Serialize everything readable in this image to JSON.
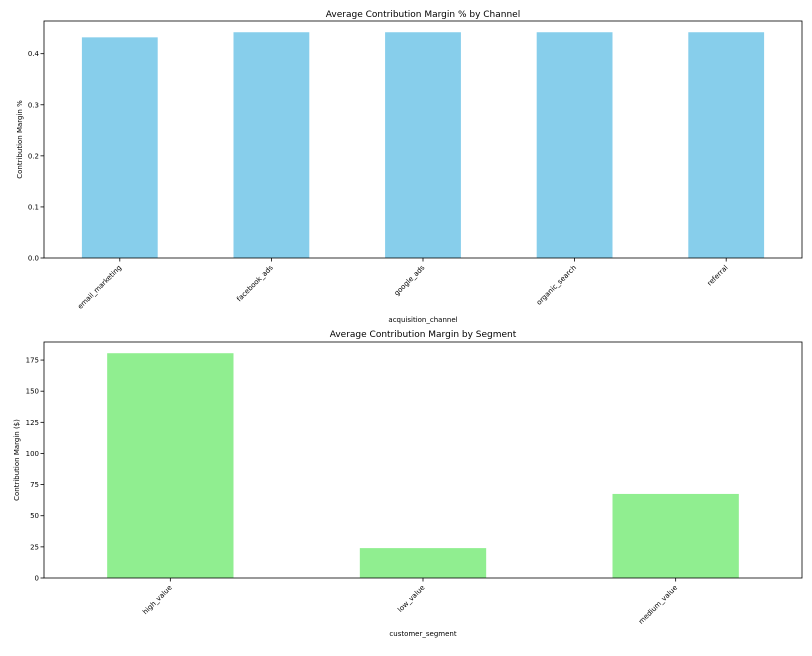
{
  "chart_data": [
    {
      "type": "bar",
      "title": "Average Contribution Margin % by Channel",
      "xlabel": "acquisition_channel",
      "ylabel": "Contribution Margin %",
      "categories": [
        "email_marketing",
        "facebook_ads",
        "google_ads",
        "organic_search",
        "referral"
      ],
      "values": [
        0.432,
        0.442,
        0.442,
        0.442,
        0.442
      ],
      "ylim": [
        0,
        0.464
      ],
      "yticks": [
        0.0,
        0.1,
        0.2,
        0.3,
        0.4
      ],
      "ytick_labels": [
        "0.0",
        "0.1",
        "0.2",
        "0.3",
        "0.4"
      ],
      "bar_color": "#87CEEB",
      "grid": false,
      "legend": "none"
    },
    {
      "type": "bar",
      "title": "Average Contribution Margin by Segment",
      "xlabel": "customer_segment",
      "ylabel": "Contribution Margin ($)",
      "categories": [
        "high_value",
        "low_value",
        "medium_value"
      ],
      "values": [
        180.5,
        24,
        67.5
      ],
      "ylim": [
        0,
        189.5
      ],
      "yticks": [
        0,
        25,
        50,
        75,
        100,
        125,
        150,
        175
      ],
      "ytick_labels": [
        "0",
        "25",
        "50",
        "75",
        "100",
        "125",
        "150",
        "175"
      ],
      "bar_color": "#90EE90",
      "grid": false,
      "legend": "none"
    }
  ]
}
